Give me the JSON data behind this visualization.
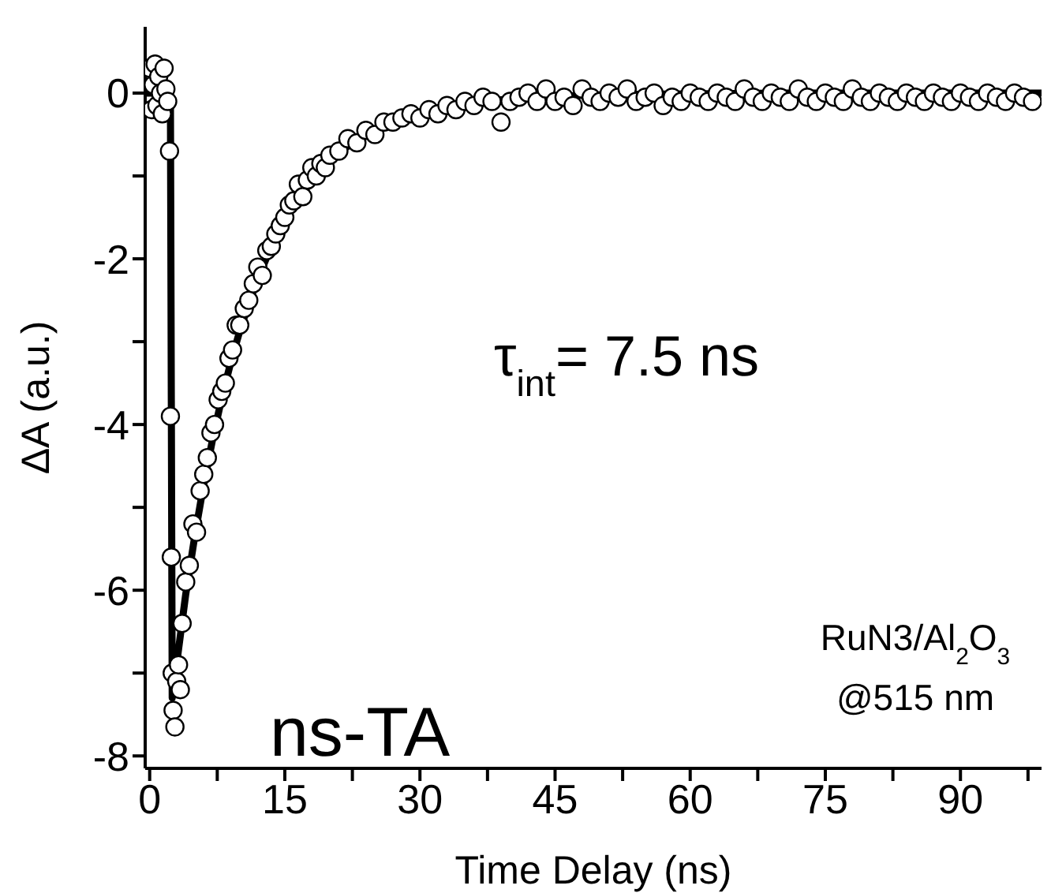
{
  "chart_data": {
    "type": "scatter",
    "xlabel": "Time Delay (ns)",
    "ylabel": "ΔA (a.u.)",
    "annotations": [
      "τ$_{int}$= 7.5 ns",
      "RuN3/Al$_{2}$O$_{3}$",
      "@515 nm",
      "ns-TA"
    ],
    "xlim": [
      -0.5,
      99
    ],
    "ylim": [
      -8.15,
      0.8
    ],
    "xticks": [
      0,
      {
        "value": 7.5,
        "label": null
      },
      15,
      {
        "value": 22.5,
        "label": null
      },
      30,
      {
        "value": 37.5,
        "label": null
      },
      45,
      {
        "value": 52.5,
        "label": null
      },
      60,
      {
        "value": 67.5,
        "label": null
      },
      75,
      {
        "value": 82.5,
        "label": null
      },
      90,
      {
        "value": 97.5,
        "label": null
      }
    ],
    "yticks": [
      -8,
      {
        "value": -7,
        "label": null
      },
      -6,
      {
        "value": -5,
        "label": null
      },
      -4,
      {
        "value": -3,
        "label": null
      },
      -2,
      {
        "value": -1,
        "label": null
      },
      0
    ],
    "marker": "circle",
    "series": [
      {
        "color": "#000000",
        "x": [
          0,
          0.2,
          0.4,
          0.6,
          0.8,
          1.0,
          1.2,
          1.4,
          1.6,
          1.8,
          2.0,
          2.2,
          2.3,
          2.4,
          2.5,
          2.6,
          2.8,
          3.0,
          3.2,
          3.4,
          3.6,
          4.0,
          4.4,
          4.8,
          5.2,
          5.6,
          6.0,
          6.4,
          6.8,
          7.2,
          7.6,
          8.0,
          8.4,
          8.8,
          9.2,
          9.6,
          10.0,
          10.5,
          11.0,
          11.5,
          12.0,
          12.5,
          13.0,
          13.5,
          14.0,
          14.5,
          15.0,
          15.5,
          16,
          16.5,
          17,
          17.5,
          18,
          18.5,
          19,
          19.5,
          20,
          21,
          22,
          23,
          24,
          25,
          26,
          27,
          28,
          29,
          30,
          31,
          32,
          33,
          34,
          35,
          36,
          37,
          38,
          39,
          40,
          41,
          42,
          43,
          44,
          45,
          46,
          47,
          48,
          49,
          50,
          51,
          52,
          53,
          54,
          55,
          56,
          57,
          58,
          59,
          60,
          61,
          62,
          63,
          64,
          65,
          66,
          67,
          68,
          69,
          70,
          71,
          72,
          73,
          74,
          75,
          76,
          77,
          78,
          79,
          80,
          81,
          82,
          83,
          84,
          85,
          86,
          87,
          88,
          89,
          90,
          91,
          92,
          93,
          94,
          95,
          96,
          97,
          98
        ],
        "values": [
          0.3,
          -0.2,
          0.1,
          0.35,
          -0.15,
          0.2,
          0.0,
          -0.25,
          0.3,
          0.05,
          -0.1,
          -0.7,
          -3.9,
          -5.6,
          -7.0,
          -7.45,
          -7.65,
          -7.1,
          -6.9,
          -7.2,
          -6.4,
          -5.9,
          -5.7,
          -5.2,
          -5.3,
          -4.8,
          -4.6,
          -4.4,
          -4.1,
          -4.0,
          -3.7,
          -3.6,
          -3.5,
          -3.2,
          -3.1,
          -2.8,
          -2.8,
          -2.6,
          -2.5,
          -2.3,
          -2.1,
          -2.2,
          -1.9,
          -1.85,
          -1.7,
          -1.6,
          -1.5,
          -1.35,
          -1.3,
          -1.1,
          -1.25,
          -1.05,
          -0.9,
          -1.0,
          -0.85,
          -0.9,
          -0.75,
          -0.7,
          -0.55,
          -0.6,
          -0.45,
          -0.5,
          -0.35,
          -0.35,
          -0.3,
          -0.25,
          -0.3,
          -0.2,
          -0.25,
          -0.15,
          -0.2,
          -0.1,
          -0.15,
          -0.05,
          -0.1,
          -0.35,
          -0.1,
          -0.05,
          0.0,
          -0.1,
          0.05,
          -0.1,
          -0.05,
          -0.15,
          0.05,
          -0.05,
          -0.1,
          0.0,
          -0.05,
          0.05,
          -0.1,
          -0.05,
          0.0,
          -0.15,
          -0.05,
          -0.1,
          0.0,
          -0.05,
          -0.1,
          0.0,
          -0.05,
          -0.1,
          0.05,
          -0.05,
          -0.1,
          0.0,
          -0.05,
          -0.1,
          0.05,
          -0.05,
          -0.1,
          0.0,
          -0.05,
          -0.1,
          0.05,
          -0.05,
          -0.1,
          0.0,
          -0.05,
          -0.1,
          0.0,
          -0.05,
          -0.1,
          0.0,
          -0.05,
          -0.1,
          0.0,
          -0.05,
          -0.1,
          0.0,
          -0.05,
          -0.1,
          0.0,
          -0.05,
          -0.1
        ]
      },
      {
        "type": "line",
        "color": "#000000",
        "marker": "none",
        "line_style": "solid",
        "x": [
          -0.5,
          2.3,
          2.5,
          4,
          5,
          6,
          7,
          8,
          9,
          10,
          11,
          12,
          13,
          14,
          15,
          17,
          19,
          21,
          23,
          25,
          27,
          30,
          33,
          36,
          40,
          45,
          50,
          60,
          70,
          99
        ],
        "values": [
          0,
          0,
          -7.3,
          -6.05,
          -5.35,
          -4.72,
          -4.17,
          -3.68,
          -3.25,
          -2.87,
          -2.54,
          -2.24,
          -1.98,
          -1.74,
          -1.54,
          -1.2,
          -0.93,
          -0.72,
          -0.56,
          -0.44,
          -0.34,
          -0.23,
          -0.16,
          -0.11,
          -0.07,
          -0.04,
          -0.02,
          -0.01,
          0,
          0
        ]
      }
    ]
  }
}
